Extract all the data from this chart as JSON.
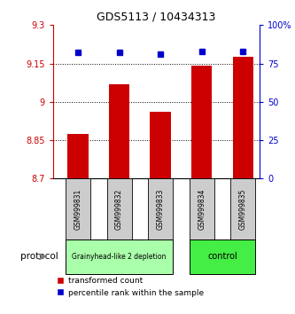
{
  "title": "GDS5113 / 10434313",
  "samples": [
    "GSM999831",
    "GSM999832",
    "GSM999833",
    "GSM999834",
    "GSM999835"
  ],
  "bar_values": [
    8.875,
    9.07,
    8.96,
    9.14,
    9.175
  ],
  "percentile_values": [
    82,
    82,
    81,
    83,
    83
  ],
  "bar_color": "#cc0000",
  "percentile_color": "#0000cc",
  "ylim_left": [
    8.7,
    9.3
  ],
  "ylim_right": [
    0,
    100
  ],
  "yticks_left": [
    8.7,
    8.85,
    9.0,
    9.15,
    9.3
  ],
  "ytick_labels_left": [
    "8.7",
    "8.85",
    "9",
    "9.15",
    "9.3"
  ],
  "yticks_right": [
    0,
    25,
    50,
    75,
    100
  ],
  "ytick_labels_right": [
    "0",
    "25",
    "50",
    "75",
    "100%"
  ],
  "grid_yticks": [
    8.85,
    9.0,
    9.15
  ],
  "groups": [
    {
      "label": "Grainyhead-like 2 depletion",
      "samples": [
        0,
        1,
        2
      ],
      "color": "#aaffaa",
      "border": "#000000"
    },
    {
      "label": "control",
      "samples": [
        3,
        4
      ],
      "color": "#44ee44",
      "border": "#000000"
    }
  ],
  "protocol_label": "protocol",
  "legend_bar_label": "transformed count",
  "legend_pct_label": "percentile rank within the sample",
  "bg_color": "#ffffff",
  "axis_left_color": "#cc0000",
  "axis_right_color": "#0000cc",
  "sample_box_color": "#cccccc",
  "bar_width": 0.5,
  "xlim": [
    -0.6,
    4.4
  ]
}
